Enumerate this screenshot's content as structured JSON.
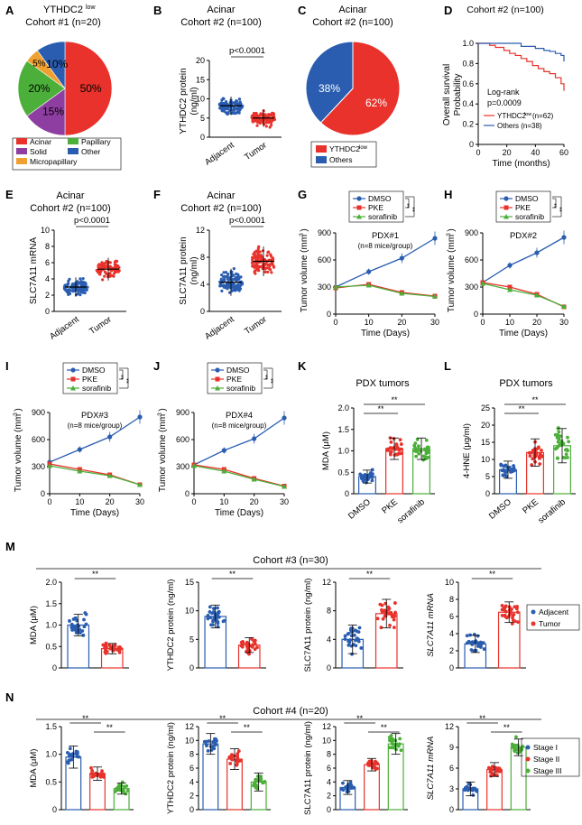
{
  "colors": {
    "red": "#e8322b",
    "blue": "#2a5db0",
    "green": "#4caf3a",
    "orange": "#f0a030",
    "purple": "#8e3ea0",
    "darkblue": "#1f3c88"
  },
  "chart_data": [
    {
      "panel": "A",
      "type": "pie",
      "title": "YTHDC2low",
      "subtitle": "Cohort #1 (n=20)",
      "categories": [
        "Acinar",
        "Solid",
        "Papillary",
        "Micropapillary",
        "Other"
      ],
      "values": [
        50,
        15,
        20,
        5,
        10
      ],
      "labels": [
        "50%",
        "15%",
        "20%",
        "5%",
        "10%"
      ],
      "legend": [
        "Acinar",
        "Papillary",
        "Solid",
        "Other",
        "Micropapillary"
      ]
    },
    {
      "panel": "B",
      "type": "scatter",
      "title": "Acinar",
      "subtitle": "Cohort #2 (n=100)",
      "ylabel": "YTHDC2 protein (ng/ml)",
      "categories": [
        "Adjacent",
        "Tumor"
      ],
      "means": [
        8.2,
        5.0
      ],
      "sds": [
        2.4,
        2.3
      ],
      "ylim": [
        0,
        20
      ],
      "yticks": [
        "0",
        "5",
        "10",
        "15",
        "20"
      ],
      "annotation": "p<0.0001"
    },
    {
      "panel": "C",
      "type": "pie",
      "title": "Acinar",
      "subtitle": "Cohort #2 (n=100)",
      "categories": [
        "YTHDC2low",
        "Others"
      ],
      "values": [
        62,
        38
      ],
      "labels": [
        "62%",
        "38%"
      ],
      "legend": [
        "YTHDC2low",
        "Others"
      ]
    },
    {
      "panel": "D",
      "type": "line",
      "title": "Cohort #2 (n=100)",
      "xlabel": "Time (months)",
      "ylabel": "Overall survival Probability",
      "xlim": [
        0,
        60
      ],
      "ylim": [
        0,
        1.0
      ],
      "xticks": [
        "0",
        "20",
        "40",
        "60"
      ],
      "yticks": [
        "0",
        "0.2",
        "0.4",
        "0.6",
        "0.8",
        "1.0"
      ],
      "series": [
        {
          "name": "YTHDC2low (n=62)",
          "x": [
            0,
            8,
            12,
            18,
            22,
            26,
            30,
            34,
            38,
            42,
            46,
            50,
            54,
            58,
            60
          ],
          "y": [
            1.0,
            0.98,
            0.96,
            0.93,
            0.9,
            0.88,
            0.85,
            0.82,
            0.78,
            0.75,
            0.72,
            0.7,
            0.66,
            0.6,
            0.53
          ]
        },
        {
          "name": "Others (n=38)",
          "x": [
            0,
            20,
            30,
            40,
            46,
            50,
            54,
            58,
            60
          ],
          "y": [
            1.0,
            1.0,
            0.97,
            0.95,
            0.93,
            0.92,
            0.9,
            0.88,
            0.82
          ]
        }
      ],
      "annotation": [
        "Log-rank",
        "p=0.0009"
      ]
    },
    {
      "panel": "E",
      "type": "scatter",
      "title": "Acinar",
      "subtitle": "Cohort #2 (n=100)",
      "ylabel": "SLC7A11 mRNA",
      "categories": [
        "Adjacent",
        "Tumor"
      ],
      "means": [
        3.0,
        5.2
      ],
      "sds": [
        1.2,
        1.4
      ],
      "ylim": [
        0,
        10
      ],
      "yticks": [
        "0",
        "2",
        "4",
        "6",
        "8",
        "10"
      ],
      "annotation": "p<0.0001"
    },
    {
      "panel": "F",
      "type": "scatter",
      "title": "Acinar",
      "subtitle": "Cohort #2 (n=100)",
      "ylabel": "SLC7A11 protein (ng/ml)",
      "categories": [
        "Adjacent",
        "Tumor"
      ],
      "means": [
        4.3,
        7.4
      ],
      "sds": [
        2.0,
        2.2
      ],
      "ylim": [
        0,
        12
      ],
      "yticks": [
        "0",
        "4",
        "8",
        "12"
      ],
      "annotation": "p<0.0001"
    },
    {
      "panel": "G",
      "type": "line",
      "title": "PDX#1",
      "subtitle": "(n=8 mice/group)",
      "xlabel": "Time (Days)",
      "ylabel": "Tumor volume (mm3)",
      "x": [
        0,
        10,
        20,
        30
      ],
      "xlim": [
        0,
        30
      ],
      "ylim": [
        0,
        900
      ],
      "yticks": [
        "0",
        "300",
        "600",
        "900"
      ],
      "xticks": [
        "0",
        "10",
        "20",
        "30"
      ],
      "series": [
        {
          "name": "DMSO",
          "values": [
            300,
            470,
            620,
            840
          ]
        },
        {
          "name": "PKE",
          "values": [
            290,
            330,
            240,
            200
          ]
        },
        {
          "name": "sorafinib",
          "values": [
            300,
            320,
            230,
            195
          ]
        }
      ],
      "annotation": "**"
    },
    {
      "panel": "H",
      "type": "line",
      "title": "PDX#2",
      "xlabel": "Time (Days)",
      "ylabel": "Tumor volume (mm3)",
      "x": [
        0,
        10,
        20,
        30
      ],
      "xlim": [
        0,
        30
      ],
      "ylim": [
        0,
        900
      ],
      "yticks": [
        "0",
        "300",
        "600",
        "900"
      ],
      "xticks": [
        "0",
        "10",
        "20",
        "30"
      ],
      "series": [
        {
          "name": "DMSO",
          "values": [
            350,
            540,
            680,
            850
          ]
        },
        {
          "name": "PKE",
          "values": [
            350,
            300,
            220,
            80
          ]
        },
        {
          "name": "sorafinib",
          "values": [
            340,
            270,
            210,
            85
          ]
        }
      ],
      "annotation": "**"
    },
    {
      "panel": "I",
      "type": "line",
      "title": "PDX#3",
      "subtitle": "(n=8 mice/group)",
      "xlabel": "Time (Days)",
      "ylabel": "Tumor volume (mm3)",
      "x": [
        0,
        10,
        20,
        30
      ],
      "xlim": [
        0,
        30
      ],
      "ylim": [
        0,
        900
      ],
      "yticks": [
        "0",
        "300",
        "600",
        "900"
      ],
      "xticks": [
        "0",
        "10",
        "20",
        "30"
      ],
      "series": [
        {
          "name": "DMSO",
          "values": [
            350,
            490,
            630,
            850
          ]
        },
        {
          "name": "PKE",
          "values": [
            330,
            270,
            210,
            100
          ]
        },
        {
          "name": "sorafinib",
          "values": [
            310,
            250,
            200,
            100
          ]
        }
      ],
      "annotation": "**"
    },
    {
      "panel": "J",
      "type": "line",
      "title": "PDX#4",
      "subtitle": "(n=8 mice/group)",
      "xlabel": "Time (Days)",
      "ylabel": "Tumor volume (mm3)",
      "x": [
        0,
        10,
        20,
        30
      ],
      "xlim": [
        0,
        30
      ],
      "ylim": [
        0,
        900
      ],
      "yticks": [
        "0",
        "300",
        "600",
        "900"
      ],
      "xticks": [
        "0",
        "10",
        "20",
        "30"
      ],
      "series": [
        {
          "name": "DMSO",
          "values": [
            320,
            480,
            610,
            840
          ]
        },
        {
          "name": "PKE",
          "values": [
            320,
            270,
            170,
            85
          ]
        },
        {
          "name": "sorafinib",
          "values": [
            310,
            250,
            160,
            80
          ]
        }
      ],
      "annotation": "**"
    },
    {
      "panel": "K",
      "type": "bar",
      "title": "PDX tumors",
      "ylabel": "MDA (μM)",
      "categories": [
        "DMSO",
        "PKE",
        "sorafinib"
      ],
      "values": [
        0.4,
        1.05,
        1.05
      ],
      "sds": [
        0.15,
        0.25,
        0.25
      ],
      "ylim": [
        0,
        2.0
      ],
      "yticks": [
        "0",
        "0.5",
        "1.0",
        "1.5",
        "2.0"
      ],
      "annotation": "**"
    },
    {
      "panel": "L",
      "type": "bar",
      "title": "PDX tumors",
      "ylabel": "4-HNE (μg/ml)",
      "categories": [
        "DMSO",
        "PKE",
        "sorafinib"
      ],
      "values": [
        7,
        12,
        14
      ],
      "sds": [
        2.5,
        4,
        5
      ],
      "ylim": [
        0,
        25
      ],
      "yticks": [
        "0",
        "5",
        "10",
        "15",
        "20",
        "25"
      ],
      "annotation": "**"
    },
    {
      "panel": "M",
      "type": "bar",
      "title": "Cohort #3 (n=30)",
      "legend": [
        "Adjacent",
        "Tumor"
      ],
      "plots": [
        {
          "ylabel": "MDA (μM)",
          "values": [
            1.0,
            0.45
          ],
          "sds": [
            0.25,
            0.12
          ],
          "ylim": [
            0,
            2.0
          ],
          "yticks": [
            "0",
            "0.5",
            "1.0",
            "1.5",
            "2.0"
          ]
        },
        {
          "ylabel": "YTHDC2 protein (ng/ml)",
          "values": [
            9,
            4
          ],
          "sds": [
            2,
            1.3
          ],
          "ylim": [
            0,
            15
          ],
          "yticks": [
            "0",
            "5",
            "10",
            "15"
          ]
        },
        {
          "ylabel": "SLC7A11 protein (ng/ml)",
          "values": [
            4,
            7.6
          ],
          "sds": [
            2,
            2
          ],
          "ylim": [
            0,
            12
          ],
          "yticks": [
            "0",
            "4",
            "8",
            "12"
          ]
        },
        {
          "ylabel": "SLC7A11 mRNA",
          "values": [
            2.8,
            6.5
          ],
          "sds": [
            1,
            1.2
          ],
          "ylim": [
            0,
            10
          ],
          "yticks": [
            "0",
            "2",
            "4",
            "6",
            "8",
            "10"
          ]
        }
      ],
      "annotation": "**"
    },
    {
      "panel": "N",
      "type": "bar",
      "title": "Cohort #4 (n=20)",
      "legend": [
        "Stage I",
        "Stage II",
        "Stage III"
      ],
      "plots": [
        {
          "ylabel": "MDA (μM)",
          "values": [
            0.95,
            0.65,
            0.38
          ],
          "sds": [
            0.2,
            0.12,
            0.1
          ],
          "ylim": [
            0,
            1.5
          ],
          "yticks": [
            "0",
            "0.5",
            "1.0",
            "1.5"
          ]
        },
        {
          "ylabel": "YTHDC2 protein (ng/ml)",
          "values": [
            9.5,
            7.3,
            4
          ],
          "sds": [
            1.5,
            1.5,
            1.3
          ],
          "ylim": [
            0,
            12
          ],
          "yticks": [
            "0",
            "2",
            "4",
            "6",
            "8",
            "10",
            "12"
          ]
        },
        {
          "ylabel": "SLC7A11 protein (ng/ml)",
          "values": [
            3.2,
            6.5,
            9.5
          ],
          "sds": [
            1,
            0.9,
            1.5
          ],
          "ylim": [
            0,
            12
          ],
          "yticks": [
            "0",
            "2",
            "4",
            "6",
            "8",
            "10",
            "12"
          ]
        },
        {
          "ylabel": "SLC7A11 mRNA",
          "values": [
            3,
            5.8,
            9
          ],
          "sds": [
            1,
            1,
            1.2
          ],
          "ylim": [
            0,
            12
          ],
          "yticks": [
            "0",
            "3",
            "6",
            "9",
            "12"
          ]
        }
      ],
      "annotation": "**"
    }
  ]
}
